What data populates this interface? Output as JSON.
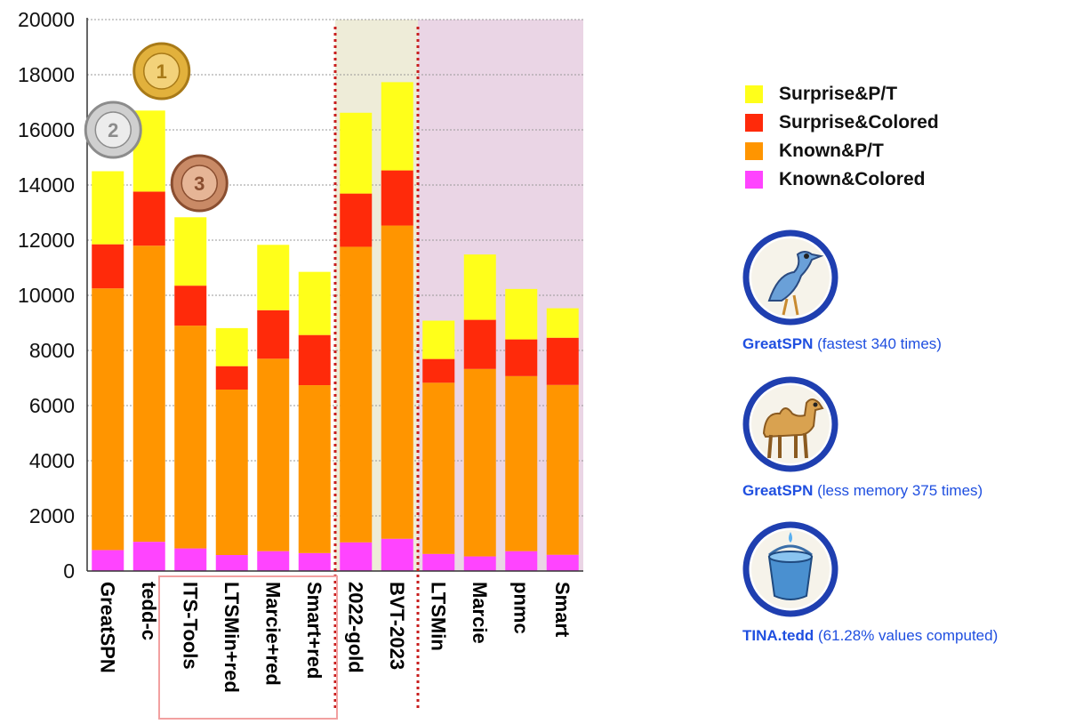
{
  "chart_data": {
    "type": "bar",
    "stacked": true,
    "categories": [
      "GreatSPN",
      "tedd-c",
      "ITS-Tools",
      "LTSMin+red",
      "Marcie+red",
      "Smart+red",
      "2022-gold",
      "BVT-2023",
      "LTSMin",
      "Marcie",
      "pnmc",
      "Smart"
    ],
    "series": [
      {
        "name": "Known&Colored",
        "color": "#ff44ff",
        "values": [
          760,
          1060,
          820,
          580,
          720,
          650,
          1040,
          1170,
          620,
          530,
          720,
          590
        ]
      },
      {
        "name": "Known&P/T",
        "color": "#ff9500",
        "values": [
          9490,
          10740,
          8080,
          6000,
          6980,
          6090,
          10720,
          11360,
          6210,
          6800,
          6350,
          6160
        ]
      },
      {
        "name": "Surprise&Colored",
        "color": "#ff2a0a",
        "values": [
          1600,
          1960,
          1450,
          850,
          1760,
          1820,
          1930,
          2000,
          860,
          1780,
          1330,
          1710
        ]
      },
      {
        "name": "Surprise&P/T",
        "color": "#ffff1a",
        "values": [
          2650,
          2940,
          2480,
          1380,
          2370,
          2290,
          2930,
          3200,
          1390,
          2370,
          1830,
          1070
        ]
      }
    ],
    "ylim": [
      0,
      20000
    ],
    "yticks": [
      "0",
      "2000",
      "4000",
      "6000",
      "8000",
      "10000",
      "12000",
      "14000",
      "16000",
      "18000",
      "20000"
    ],
    "grid": true,
    "legend_position": "right",
    "highlight_regions": [
      {
        "from": "2022-gold",
        "to": "BVT-2023",
        "color": "#eeecd8"
      },
      {
        "from": "LTSMin",
        "to": "Smart",
        "color": "#ead5e5"
      }
    ],
    "medals": [
      {
        "category": "tedd-c",
        "rank": "1"
      },
      {
        "category": "GreatSPN",
        "rank": "2"
      },
      {
        "category": "ITS-Tools",
        "rank": "3"
      }
    ]
  },
  "legend": {
    "items": [
      {
        "label": "Surprise&P/T",
        "color": "#ffff1a"
      },
      {
        "label": "Surprise&Colored",
        "color": "#ff2a0a"
      },
      {
        "label": "Known&P/T",
        "color": "#ff9500"
      },
      {
        "label": "Known&Colored",
        "color": "#ff44ff"
      }
    ]
  },
  "awards": [
    {
      "tool": "GreatSPN",
      "detail": "(fastest 340 times)",
      "icon": "roadrunner-icon"
    },
    {
      "tool": "GreatSPN",
      "detail": "(less memory 375 times)",
      "icon": "camel-icon"
    },
    {
      "tool": "TINA.tedd",
      "detail": "(61.28% values computed)",
      "icon": "bucket-icon"
    }
  ]
}
